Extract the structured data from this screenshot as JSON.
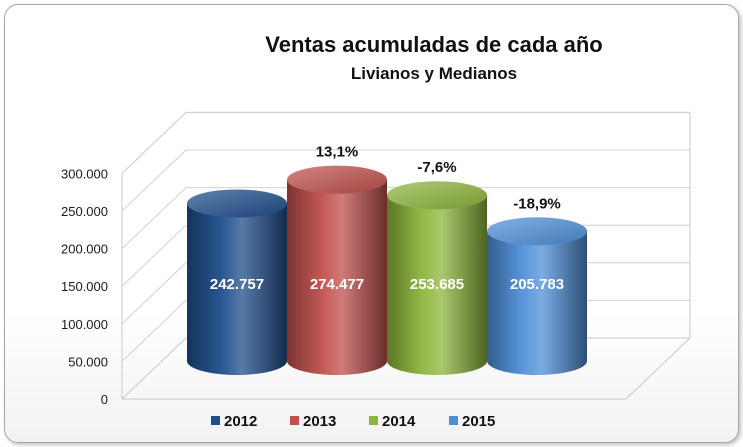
{
  "chart_data": {
    "type": "bar",
    "title": "Ventas acumuladas  de cada año",
    "subtitle": "Livianos y Medianos",
    "categories": [
      "2012",
      "2013",
      "2014",
      "2015"
    ],
    "values": [
      242757,
      274477,
      253685,
      205783
    ],
    "data_labels": [
      "242.757",
      "274.477",
      "253.685",
      "205.783"
    ],
    "change_labels": [
      "",
      "13,1%",
      "-7,6%",
      "-18,9%"
    ],
    "ylim": [
      0,
      300000
    ],
    "yticks": [
      "0",
      "50.000",
      "100.000",
      "150.000",
      "200.000",
      "250.000",
      "300.000"
    ],
    "grid": true,
    "legend_position": "bottom",
    "series_colors": [
      "#1f4e8c",
      "#c0504d",
      "#8db53c",
      "#4f8fd9"
    ]
  }
}
